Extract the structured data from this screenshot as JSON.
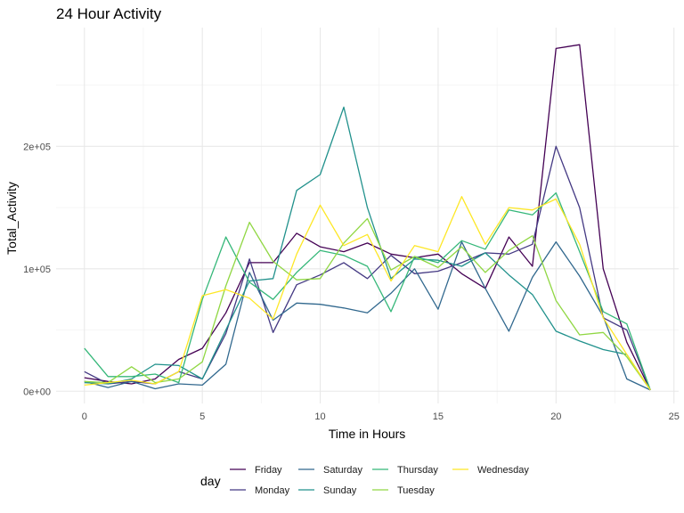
{
  "chart_data": {
    "type": "line",
    "title": "24 Hour Activity",
    "xlabel": "Time in Hours",
    "ylabel": "Total_Activity",
    "xlim": [
      -1.2,
      25.2
    ],
    "ylim": [
      -10000,
      297000
    ],
    "x_ticks": [
      0,
      5,
      10,
      15,
      20,
      25
    ],
    "x_tick_labels": [
      "0",
      "5",
      "10",
      "15",
      "20",
      "25"
    ],
    "y_ticks": [
      0,
      100000,
      200000
    ],
    "y_tick_labels": [
      "0e+00",
      "1e+05",
      "2e+05"
    ],
    "grid": true,
    "legend_title": "day",
    "legend_position": "bottom",
    "x": [
      0,
      1,
      2,
      3,
      4,
      5,
      6,
      7,
      8,
      9,
      10,
      11,
      12,
      13,
      14,
      15,
      16,
      17,
      18,
      19,
      20,
      21,
      22,
      23,
      24
    ],
    "series": [
      {
        "name": "Friday",
        "color": "#440154",
        "values": [
          11000,
          8000,
          6000,
          10000,
          26000,
          35000,
          64000,
          105000,
          105000,
          129000,
          118000,
          114000,
          121000,
          112000,
          109000,
          112000,
          96000,
          84000,
          126000,
          102000,
          280000,
          283000,
          100000,
          40000,
          1000
        ]
      },
      {
        "name": "Monday",
        "color": "#443983",
        "values": [
          16000,
          6000,
          8000,
          6000,
          16000,
          10000,
          47000,
          108000,
          48000,
          87000,
          95000,
          105000,
          92000,
          111000,
          96000,
          98000,
          105000,
          113000,
          112000,
          120000,
          200000,
          150000,
          60000,
          50000,
          1000
        ]
      },
      {
        "name": "Saturday",
        "color": "#31688e",
        "values": [
          8000,
          3000,
          8000,
          2000,
          6000,
          5000,
          22000,
          97000,
          58000,
          72000,
          71000,
          68000,
          64000,
          80000,
          100000,
          67000,
          122000,
          84000,
          49000,
          93000,
          122000,
          94000,
          61000,
          10000,
          1000
        ]
      },
      {
        "name": "Sunday",
        "color": "#21918c",
        "values": [
          7000,
          6000,
          10000,
          22000,
          21000,
          10000,
          50000,
          90000,
          92000,
          164000,
          177000,
          232000,
          150000,
          92000,
          108000,
          107000,
          102000,
          113000,
          95000,
          79000,
          49000,
          41000,
          34000,
          30000,
          1000
        ]
      },
      {
        "name": "Thursday",
        "color": "#35b779",
        "values": [
          35000,
          12000,
          12000,
          14000,
          7000,
          75000,
          126000,
          89000,
          75000,
          97000,
          115000,
          111000,
          102000,
          65000,
          110000,
          105000,
          123000,
          116000,
          148000,
          144000,
          162000,
          114000,
          65000,
          55000,
          1000
        ]
      },
      {
        "name": "Tuesday",
        "color": "#90d743",
        "values": [
          8000,
          7000,
          20000,
          7000,
          10000,
          24000,
          86000,
          138000,
          106000,
          91000,
          92000,
          121000,
          141000,
          99000,
          110000,
          101000,
          118000,
          97000,
          115000,
          127000,
          74000,
          46000,
          48000,
          28000,
          1000
        ]
      },
      {
        "name": "Wednesday",
        "color": "#fde725",
        "values": [
          5000,
          7000,
          9000,
          6000,
          16000,
          78000,
          83000,
          76000,
          59000,
          112000,
          152000,
          119000,
          128000,
          90000,
          119000,
          114000,
          159000,
          120000,
          150000,
          148000,
          157000,
          120000,
          60000,
          30000,
          1000
        ]
      }
    ]
  }
}
